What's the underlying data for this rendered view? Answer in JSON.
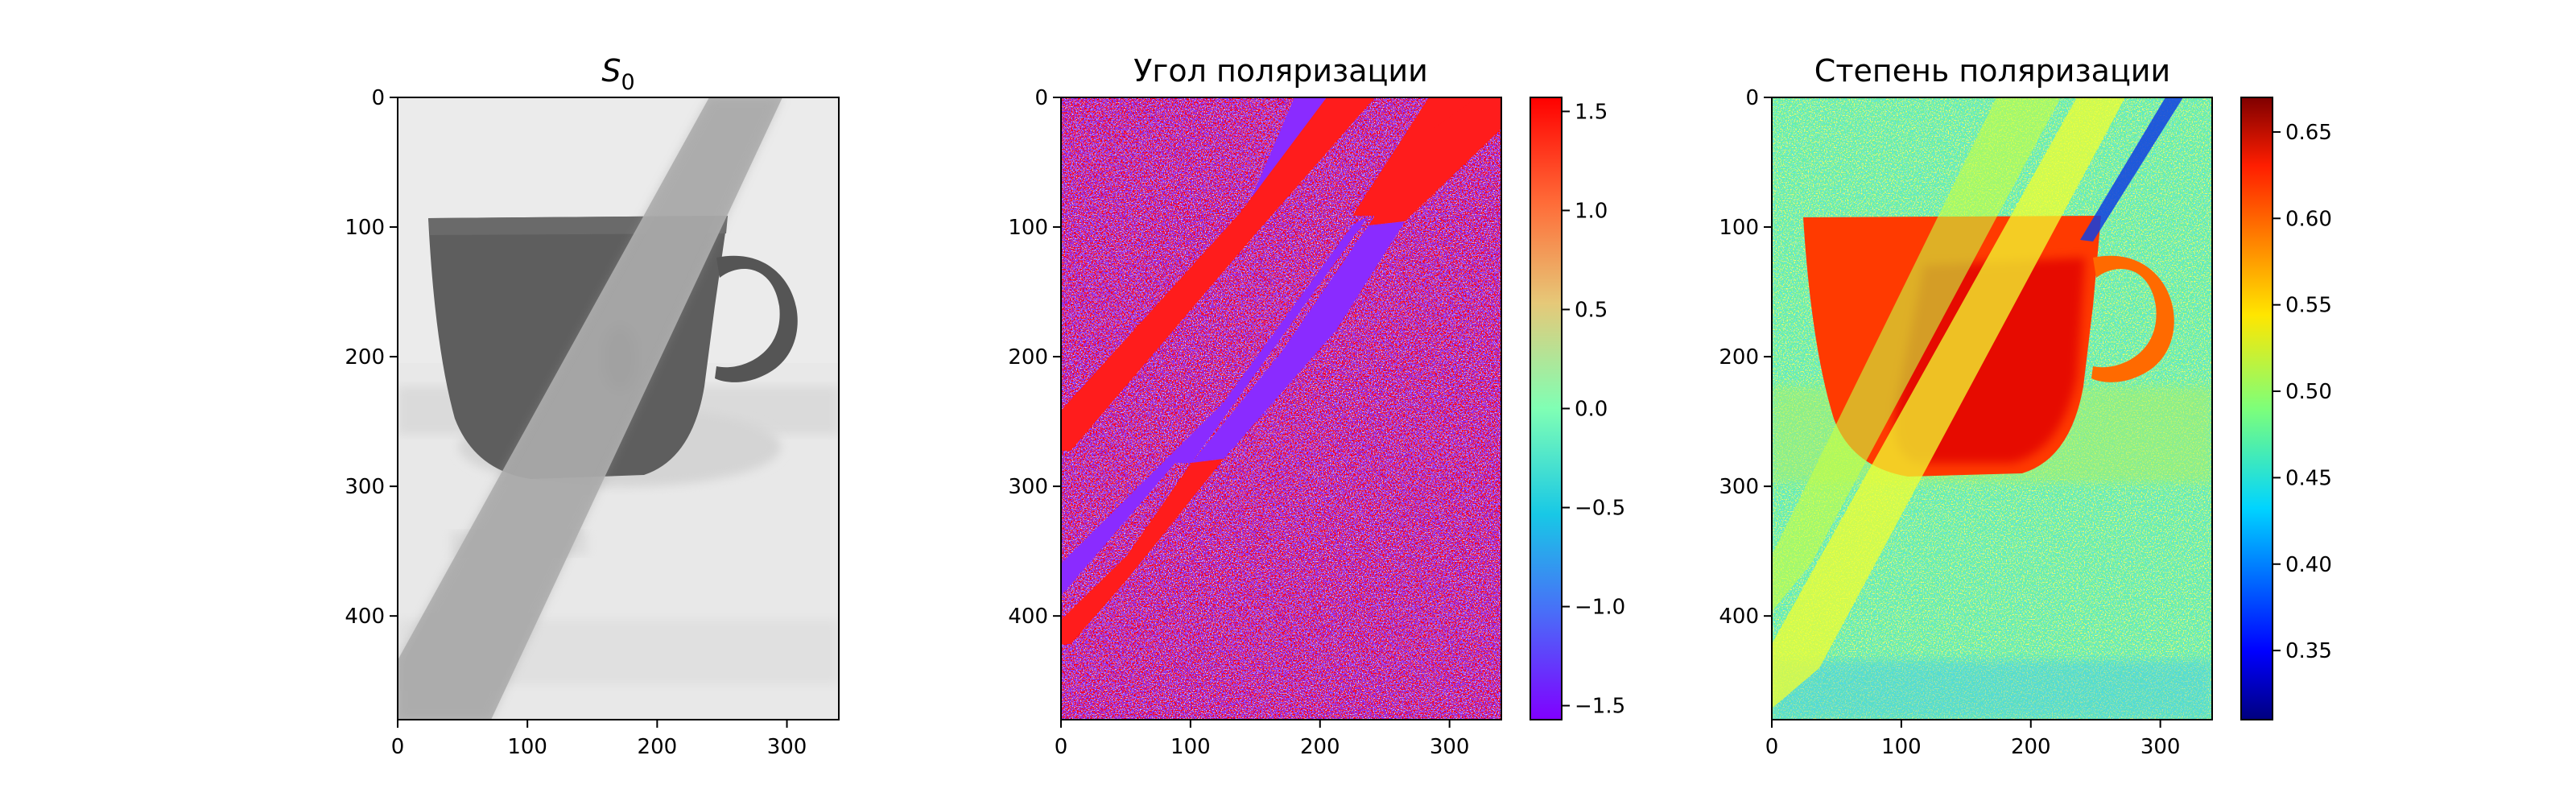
{
  "figure": {
    "background": "#ffffff"
  },
  "chart_data": [
    {
      "type": "heatmap",
      "id": "s0",
      "title": "S",
      "title_subscript": "0",
      "colormap": "gray",
      "colorbar": false,
      "xlim": [
        0,
        340
      ],
      "ylim": [
        480,
        0
      ],
      "xticks": [
        "0",
        "100",
        "200",
        "300"
      ],
      "yticks": [
        "0",
        "100",
        "200",
        "300",
        "400"
      ],
      "scene": {
        "background_level": 0.92,
        "glass_strip_level": 0.72,
        "cup_level": 0.38,
        "saucer_level": 0.85,
        "cup_shadow_level": 0.12
      }
    },
    {
      "type": "heatmap",
      "id": "angle",
      "title": "Угол поляризации",
      "colormap": "rainbow",
      "colorbar": true,
      "clim": [
        -1.5708,
        1.5708
      ],
      "colorbar_ticks": [
        "1.5",
        "1.0",
        "0.5",
        "0.0",
        "−0.5",
        "−1.0",
        "−1.5"
      ],
      "xlim": [
        0,
        340
      ],
      "ylim": [
        480,
        0
      ],
      "xticks": [
        "0",
        "100",
        "200",
        "300"
      ],
      "yticks": [
        "0",
        "100",
        "200",
        "300",
        "400"
      ],
      "scene": {
        "noise_colors": [
          "#ff1a1a",
          "#8030ff",
          "#e02020",
          "#7a3af5",
          "#b0b0e0",
          "#ff2d2d"
        ],
        "band_red": "#ff1c1c",
        "band_violet": "#8a2bff"
      }
    },
    {
      "type": "heatmap",
      "id": "dop",
      "title": "Степень поляризации",
      "colormap": "jet",
      "colorbar": true,
      "clim": [
        0.31,
        0.67
      ],
      "colorbar_ticks": [
        "0.65",
        "0.60",
        "0.55",
        "0.50",
        "0.45",
        "0.40",
        "0.35"
      ],
      "xlim": [
        0,
        340
      ],
      "ylim": [
        480,
        0
      ],
      "xticks": [
        "0",
        "100",
        "200",
        "300"
      ],
      "yticks": [
        "0",
        "100",
        "200",
        "300",
        "400"
      ],
      "scene": {
        "background_value": 0.48,
        "glass_strip_value": 0.56,
        "cup_value": 0.62,
        "cup_core_value": 0.65,
        "dark_streak_value": 0.38
      }
    }
  ]
}
